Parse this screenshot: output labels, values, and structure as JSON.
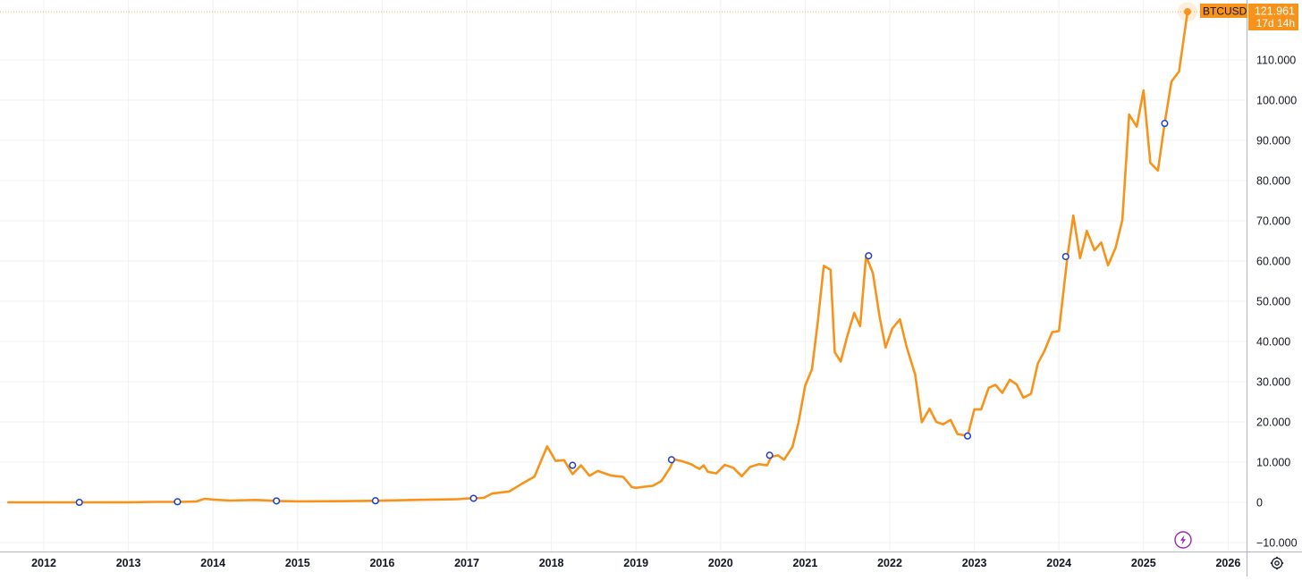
{
  "chart_data": {
    "type": "line",
    "title": "",
    "xlabel": "",
    "ylabel": "",
    "ylim": [
      -10000,
      122000
    ],
    "y_ticks": [
      -10000,
      0,
      10000,
      20000,
      30000,
      40000,
      50000,
      60000,
      70000,
      80000,
      90000,
      100000,
      110000
    ],
    "y_tick_labels": [
      "−10.000",
      "0",
      "10.000",
      "20.000",
      "30.000",
      "40.000",
      "50.000",
      "60.000",
      "70.000",
      "80.000",
      "90.000",
      "100.000",
      "110.000"
    ],
    "x_tick_labels": [
      "2012",
      "2013",
      "2014",
      "2015",
      "2016",
      "2017",
      "2018",
      "2019",
      "2020",
      "2021",
      "2022",
      "2023",
      "2024",
      "2025",
      "2026"
    ],
    "grid": true,
    "series": [
      {
        "name": "BTCUSD",
        "color": "#f7931a",
        "points": [
          [
            2011.58,
            10
          ],
          [
            2012.0,
            5
          ],
          [
            2012.4,
            6
          ],
          [
            2012.8,
            12
          ],
          [
            2013.0,
            20
          ],
          [
            2013.3,
            100
          ],
          [
            2013.6,
            100
          ],
          [
            2013.8,
            200
          ],
          [
            2013.9,
            900
          ],
          [
            2014.0,
            700
          ],
          [
            2014.2,
            450
          ],
          [
            2014.5,
            600
          ],
          [
            2014.75,
            350
          ],
          [
            2015.0,
            250
          ],
          [
            2015.5,
            280
          ],
          [
            2015.85,
            380
          ],
          [
            2016.0,
            420
          ],
          [
            2016.5,
            650
          ],
          [
            2016.9,
            780
          ],
          [
            2017.0,
            960
          ],
          [
            2017.2,
            1100
          ],
          [
            2017.3,
            2200
          ],
          [
            2017.5,
            2700
          ],
          [
            2017.65,
            4600
          ],
          [
            2017.8,
            6400
          ],
          [
            2017.95,
            13900
          ],
          [
            2018.05,
            10300
          ],
          [
            2018.15,
            10500
          ],
          [
            2018.25,
            7000
          ],
          [
            2018.35,
            9200
          ],
          [
            2018.45,
            6600
          ],
          [
            2018.55,
            7800
          ],
          [
            2018.7,
            6700
          ],
          [
            2018.85,
            6300
          ],
          [
            2018.95,
            3800
          ],
          [
            2019.0,
            3600
          ],
          [
            2019.1,
            3900
          ],
          [
            2019.2,
            4100
          ],
          [
            2019.3,
            5300
          ],
          [
            2019.4,
            8500
          ],
          [
            2019.45,
            10700
          ],
          [
            2019.55,
            10200
          ],
          [
            2019.65,
            9500
          ],
          [
            2019.75,
            8300
          ],
          [
            2019.8,
            9200
          ],
          [
            2019.85,
            7600
          ],
          [
            2019.95,
            7200
          ],
          [
            2020.05,
            9300
          ],
          [
            2020.15,
            8600
          ],
          [
            2020.25,
            6500
          ],
          [
            2020.35,
            8800
          ],
          [
            2020.45,
            9500
          ],
          [
            2020.55,
            9200
          ],
          [
            2020.6,
            11300
          ],
          [
            2020.68,
            11700
          ],
          [
            2020.75,
            10600
          ],
          [
            2020.85,
            13800
          ],
          [
            2020.92,
            19700
          ],
          [
            2021.0,
            29000
          ],
          [
            2021.08,
            33100
          ],
          [
            2021.15,
            45000
          ],
          [
            2021.22,
            58800
          ],
          [
            2021.3,
            57800
          ],
          [
            2021.35,
            37300
          ],
          [
            2021.42,
            35000
          ],
          [
            2021.5,
            41500
          ],
          [
            2021.58,
            47100
          ],
          [
            2021.65,
            43800
          ],
          [
            2021.72,
            61300
          ],
          [
            2021.8,
            57000
          ],
          [
            2021.88,
            46200
          ],
          [
            2021.95,
            38500
          ],
          [
            2022.03,
            43200
          ],
          [
            2022.12,
            45500
          ],
          [
            2022.2,
            38600
          ],
          [
            2022.3,
            31800
          ],
          [
            2022.38,
            19900
          ],
          [
            2022.47,
            23300
          ],
          [
            2022.55,
            20000
          ],
          [
            2022.63,
            19400
          ],
          [
            2022.72,
            20500
          ],
          [
            2022.8,
            17000
          ],
          [
            2022.92,
            16500
          ],
          [
            2023.0,
            23100
          ],
          [
            2023.08,
            23100
          ],
          [
            2023.17,
            28500
          ],
          [
            2023.25,
            29200
          ],
          [
            2023.33,
            27200
          ],
          [
            2023.42,
            30500
          ],
          [
            2023.5,
            29300
          ],
          [
            2023.58,
            26000
          ],
          [
            2023.67,
            27000
          ],
          [
            2023.75,
            34500
          ],
          [
            2023.83,
            37700
          ],
          [
            2023.92,
            42300
          ],
          [
            2024.0,
            42600
          ],
          [
            2024.1,
            61100
          ],
          [
            2024.17,
            71300
          ],
          [
            2024.25,
            60700
          ],
          [
            2024.33,
            67500
          ],
          [
            2024.42,
            62700
          ],
          [
            2024.5,
            64600
          ],
          [
            2024.58,
            58900
          ],
          [
            2024.67,
            63300
          ],
          [
            2024.75,
            70200
          ],
          [
            2024.83,
            96400
          ],
          [
            2024.92,
            93400
          ],
          [
            2025.0,
            102400
          ],
          [
            2025.08,
            84400
          ],
          [
            2025.17,
            82500
          ],
          [
            2025.25,
            94200
          ],
          [
            2025.33,
            104600
          ],
          [
            2025.42,
            107100
          ],
          [
            2025.52,
            121961
          ]
        ]
      }
    ],
    "markers": [
      [
        2012.42,
        0
      ],
      [
        2013.58,
        150
      ],
      [
        2014.75,
        350
      ],
      [
        2015.92,
        400
      ],
      [
        2017.08,
        1000
      ],
      [
        2018.25,
        9200
      ],
      [
        2019.42,
        10600
      ],
      [
        2020.58,
        11700
      ],
      [
        2021.75,
        61300
      ],
      [
        2022.92,
        16500
      ],
      [
        2024.08,
        61100
      ],
      [
        2025.25,
        94200
      ]
    ],
    "price_label": {
      "symbol": "BTCUSD",
      "value": "121.961",
      "countdown": "17d 14h"
    }
  }
}
